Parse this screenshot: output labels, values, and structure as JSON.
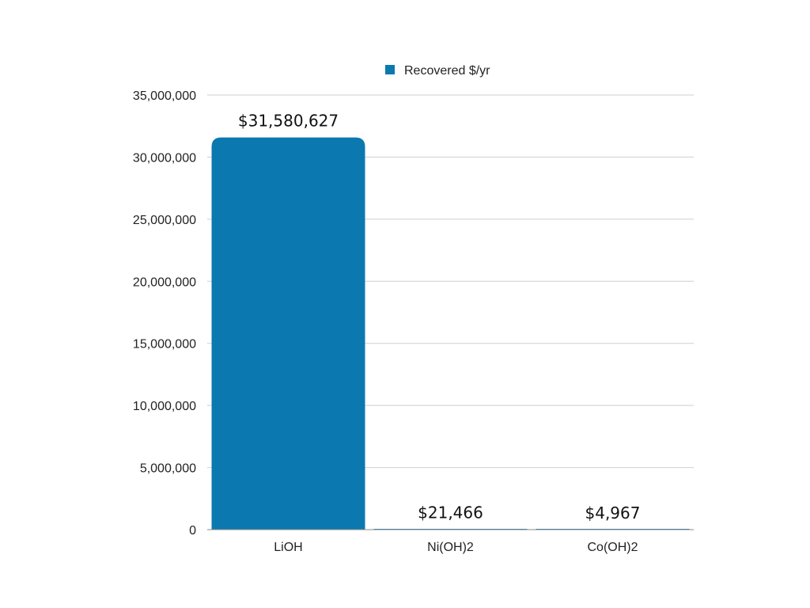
{
  "chart_data": {
    "type": "bar",
    "title": "",
    "xlabel": "",
    "ylabel": "",
    "categories": [
      "LiOH",
      "Ni(OH)2",
      "Co(OH)2"
    ],
    "series": [
      {
        "name": "Recovered $/yr",
        "values": [
          31580627,
          21466,
          4967
        ],
        "data_labels": [
          "$31,580,627",
          "$21,466",
          "$4,967"
        ],
        "color": "#0b79b0"
      }
    ],
    "ylim": [
      0,
      35000000
    ],
    "yticks": [
      0,
      5000000,
      10000000,
      15000000,
      20000000,
      25000000,
      30000000,
      35000000
    ],
    "ytick_labels": [
      "0",
      "5,000,000",
      "10,000,000",
      "15,000,000",
      "20,000,000",
      "25,000,000",
      "30,000,000",
      "35,000,000"
    ],
    "grid": true,
    "legend": {
      "position": "top-center"
    }
  }
}
